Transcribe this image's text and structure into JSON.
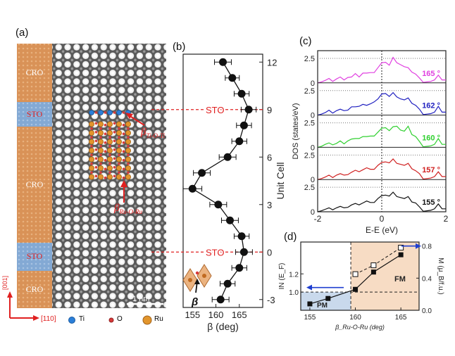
{
  "panel_a": {
    "label": "(a)",
    "layers": [
      "CRO",
      "STO",
      "CRO",
      "STO",
      "CRO"
    ],
    "angle_ti": "β",
    "angle_ti_sub": "Ti-O-Ti",
    "angle_ru": "β",
    "angle_ru_sub": "Ru-O-Ru",
    "scale_bar": "1 nm",
    "direction_vertical": "[001]",
    "direction_horizontal": "[110]",
    "legend": [
      "Ti",
      "O",
      "Ru"
    ],
    "colors": {
      "cro": "#d9955a",
      "sto": "#7ea6d6",
      "ti": "#2b7fd9",
      "o": "#d93a3a",
      "ru": "#e2952c",
      "arrow": "#e02020"
    }
  },
  "panel_b": {
    "label": "(b)",
    "inset_symbol": "β",
    "sto_markers": [
      "STO",
      "STO"
    ]
  },
  "panel_c": {
    "label": "(c)"
  },
  "panel_d": {
    "label": "(d)",
    "region_pm": "PM",
    "region_fm": "FM",
    "colors": {
      "pm_bg": "#c9d9ec",
      "fm_bg": "#f7dcc4"
    }
  },
  "chart_data": [
    {
      "type": "line",
      "panel": "b",
      "title": "",
      "xlabel": "β (deg)",
      "ylabel": "Unit Cell",
      "xlim": [
        153,
        170
      ],
      "ylim": [
        -3.5,
        12.5
      ],
      "xticks": [
        "155",
        "160",
        "165"
      ],
      "yticks": [
        "-3",
        "0",
        "3",
        "6",
        "9",
        "12"
      ],
      "reference_lines": [
        {
          "y": 9,
          "label": "STO"
        },
        {
          "y": 0,
          "label": "STO"
        }
      ],
      "points": [
        {
          "uc": 12,
          "beta": 161.5,
          "err": 1.8
        },
        {
          "uc": 11,
          "beta": 163.5,
          "err": 1.5
        },
        {
          "uc": 10,
          "beta": 165.5,
          "err": 1.6
        },
        {
          "uc": 9,
          "beta": 167.0,
          "err": 1.6
        },
        {
          "uc": 8,
          "beta": 166.0,
          "err": 1.6
        },
        {
          "uc": 7,
          "beta": 165.0,
          "err": 1.6
        },
        {
          "uc": 6,
          "beta": 162.5,
          "err": 1.8
        },
        {
          "uc": 5,
          "beta": 157.0,
          "err": 1.8
        },
        {
          "uc": 4,
          "beta": 155.0,
          "err": 2.0
        },
        {
          "uc": 3,
          "beta": 160.5,
          "err": 1.8
        },
        {
          "uc": 2,
          "beta": 163.0,
          "err": 1.8
        },
        {
          "uc": 1,
          "beta": 165.5,
          "err": 1.6
        },
        {
          "uc": 0,
          "beta": 166.0,
          "err": 1.8
        },
        {
          "uc": -1,
          "beta": 165.0,
          "err": 1.6
        },
        {
          "uc": -2,
          "beta": 162.5,
          "err": 1.6
        },
        {
          "uc": -3,
          "beta": 161.0,
          "err": 1.8
        }
      ]
    },
    {
      "type": "line",
      "panel": "c",
      "title": "",
      "xlabel": "E-E_F (eV)",
      "ylabel": "DOS (states/eV)",
      "xlim": [
        -2,
        2
      ],
      "ylim": [
        0,
        3
      ],
      "xticks": [
        "-2",
        "0",
        "2"
      ],
      "yticks": [
        "0",
        "2.5"
      ],
      "series": [
        {
          "name": "165 °",
          "color": "#e040e0",
          "shape": [
            0.1,
            0.15,
            0.2,
            0.3,
            0.25,
            0.4,
            0.5,
            0.45,
            0.6,
            0.55,
            0.8,
            0.7,
            1.0,
            0.9,
            1.2,
            1.1,
            1.5,
            1.9,
            2.2,
            1.8,
            2.5,
            2.2,
            1.9,
            1.6,
            1.4,
            1.2,
            0.9,
            0.4,
            0.2,
            0.15,
            0.1,
            0.15,
            0.9,
            0.3,
            0.2
          ]
        },
        {
          "name": "162 °",
          "color": "#2020c0",
          "shape": [
            0.1,
            0.15,
            0.2,
            0.35,
            0.3,
            0.45,
            0.5,
            0.6,
            0.55,
            0.8,
            0.7,
            1.0,
            1.1,
            0.9,
            1.3,
            1.4,
            1.6,
            2.0,
            2.3,
            1.9,
            2.2,
            2.0,
            1.7,
            1.5,
            1.6,
            1.3,
            1.0,
            0.5,
            0.2,
            0.15,
            0.1,
            0.15,
            1.0,
            0.3,
            0.2
          ]
        },
        {
          "name": "160 °",
          "color": "#30d030",
          "shape": [
            0.1,
            0.15,
            0.25,
            0.3,
            0.35,
            0.4,
            0.55,
            0.5,
            0.7,
            0.8,
            0.75,
            1.0,
            1.1,
            1.0,
            1.3,
            1.2,
            1.5,
            1.8,
            2.1,
            1.7,
            2.0,
            2.3,
            1.8,
            1.6,
            2.0,
            1.4,
            1.1,
            0.5,
            0.2,
            0.15,
            0.1,
            0.15,
            1.0,
            0.3,
            0.2
          ]
        },
        {
          "name": "157 °",
          "color": "#d02020",
          "shape": [
            0.1,
            0.15,
            0.2,
            0.3,
            0.3,
            0.45,
            0.5,
            0.6,
            0.55,
            0.7,
            0.8,
            0.9,
            1.0,
            1.1,
            1.2,
            1.1,
            1.4,
            1.6,
            1.9,
            1.7,
            2.0,
            1.8,
            1.6,
            1.4,
            1.5,
            1.2,
            0.9,
            0.5,
            0.2,
            0.15,
            0.1,
            0.15,
            0.9,
            0.3,
            0.2
          ]
        },
        {
          "name": "155 °",
          "color": "#111111",
          "shape": [
            0.1,
            0.15,
            0.2,
            0.25,
            0.3,
            0.4,
            0.45,
            0.55,
            0.5,
            0.65,
            0.7,
            0.8,
            0.9,
            1.0,
            1.1,
            1.0,
            1.3,
            1.5,
            1.8,
            1.6,
            1.9,
            1.7,
            1.5,
            1.3,
            1.4,
            1.1,
            0.9,
            0.4,
            0.2,
            0.15,
            0.1,
            0.15,
            0.9,
            0.3,
            0.2
          ]
        }
      ]
    },
    {
      "type": "line",
      "panel": "d",
      "title": "",
      "xlabel": "β_Ru-O-Ru (deg)",
      "ylabel": "IN (E_F)",
      "ylabel_right": "M (μ_B/f.u.)",
      "xlim": [
        154,
        167
      ],
      "ylim": [
        0.8,
        1.55
      ],
      "ylim_right": [
        0,
        0.85
      ],
      "xticks": [
        "155",
        "160",
        "165"
      ],
      "yticks": [
        "1.0",
        "1.2"
      ],
      "yticks_right": [
        "0.0",
        "0.4",
        "0.8"
      ],
      "threshold_x": 159.5,
      "stoner_line": 1.0,
      "series": [
        {
          "name": "IN(E_F)",
          "marker": "filled-square",
          "x": [
            155,
            157,
            160,
            162,
            165
          ],
          "y": [
            0.87,
            0.93,
            1.03,
            1.22,
            1.41
          ]
        },
        {
          "name": "M",
          "marker": "open-square",
          "x": [
            160,
            162,
            165
          ],
          "y_right": [
            0.45,
            0.56,
            0.78
          ]
        }
      ]
    }
  ]
}
